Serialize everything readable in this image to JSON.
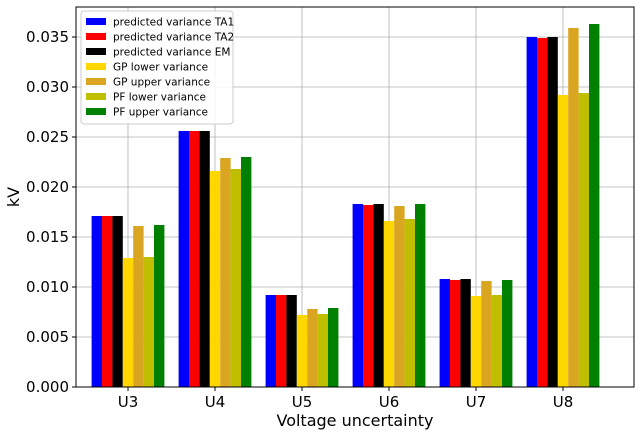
{
  "chart_data": {
    "type": "bar",
    "title": "",
    "xlabel": "Voltage uncertainty",
    "ylabel": "kV",
    "categories": [
      "U3",
      "U4",
      "U5",
      "U6",
      "U7",
      "U8"
    ],
    "ylim": [
      0,
      0.038
    ],
    "yticks": [
      "0.000",
      "0.005",
      "0.010",
      "0.015",
      "0.020",
      "0.025",
      "0.030",
      "0.035"
    ],
    "grid": true,
    "legend_position": "top-left",
    "series": [
      {
        "name": "predicted variance TA1",
        "color": "#0000ff",
        "values": [
          0.0171,
          0.0256,
          0.0092,
          0.0183,
          0.0108,
          0.035
        ]
      },
      {
        "name": "predicted variance TA2",
        "color": "#ff0000",
        "values": [
          0.0171,
          0.0256,
          0.0092,
          0.0182,
          0.0107,
          0.0349
        ]
      },
      {
        "name": "predicted variance EM",
        "color": "#000000",
        "values": [
          0.0171,
          0.0256,
          0.0092,
          0.0183,
          0.0108,
          0.035
        ]
      },
      {
        "name": "GP lower variance",
        "color": "#ffd700",
        "values": [
          0.0129,
          0.0216,
          0.0072,
          0.0166,
          0.0091,
          0.0292
        ]
      },
      {
        "name": "GP upper variance",
        "color": "#daa520",
        "values": [
          0.0161,
          0.0229,
          0.0078,
          0.0181,
          0.0106,
          0.0359
        ]
      },
      {
        "name": "PF lower variance",
        "color": "#bfbf00",
        "values": [
          0.013,
          0.0218,
          0.0073,
          0.0168,
          0.0092,
          0.0294
        ]
      },
      {
        "name": "PF upper variance",
        "color": "#008000",
        "values": [
          0.0162,
          0.023,
          0.0079,
          0.0183,
          0.0107,
          0.0363
        ]
      }
    ]
  }
}
